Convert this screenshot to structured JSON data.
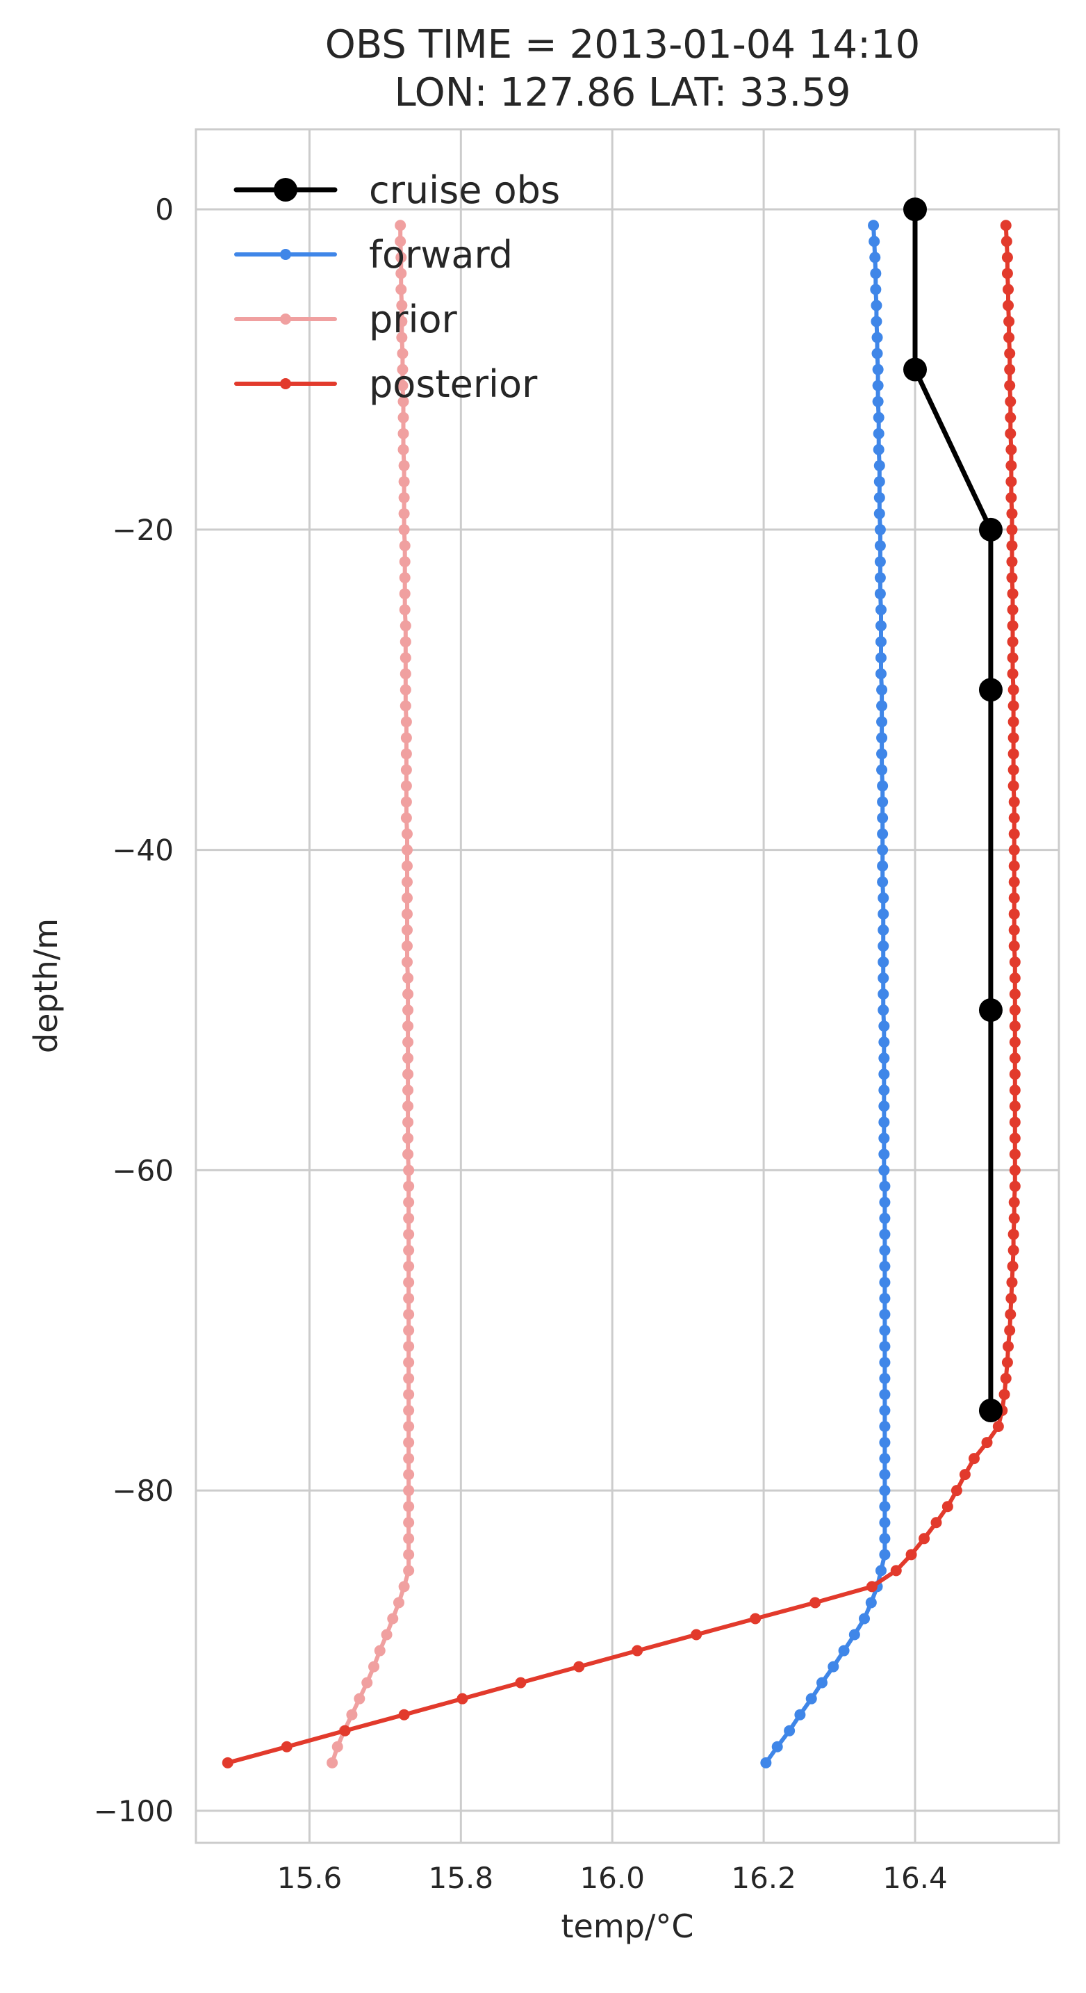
{
  "chart_data": {
    "type": "line",
    "title": "OBS TIME = 2013-01-04 14:10",
    "subtitle": "LON: 127.86 LAT: 33.59",
    "xlabel": "temp/°C",
    "ylabel": "depth/m",
    "xlim": [
      15.45,
      16.59
    ],
    "ylim": [
      -102,
      5
    ],
    "xticks": [
      15.6,
      15.8,
      16.0,
      16.2,
      16.4
    ],
    "xtick_labels": [
      "15.6",
      "15.8",
      "16.0",
      "16.2",
      "16.4"
    ],
    "yticks": [
      0,
      -20,
      -40,
      -60,
      -80,
      -100
    ],
    "ytick_labels": [
      "0",
      "−20",
      "−40",
      "−60",
      "−80",
      "−100"
    ],
    "grid": true,
    "legend_position": "top-left",
    "series": [
      {
        "name": "cruise obs",
        "color": "#000000",
        "marker": "large-circle",
        "points": [
          [
            16.4,
            0
          ],
          [
            16.4,
            -10
          ],
          [
            16.5,
            -20
          ],
          [
            16.5,
            -30
          ],
          [
            16.5,
            -50
          ],
          [
            16.5,
            -75
          ]
        ]
      },
      {
        "name": "forward",
        "color": "#3f86e8",
        "marker": "small-circle",
        "start_depth": -1,
        "end_depth": -97,
        "temps": [
          16.345,
          16.346,
          16.347,
          16.348,
          16.348,
          16.349,
          16.349,
          16.35,
          16.35,
          16.351,
          16.351,
          16.351,
          16.352,
          16.352,
          16.352,
          16.353,
          16.353,
          16.353,
          16.353,
          16.354,
          16.354,
          16.354,
          16.354,
          16.354,
          16.355,
          16.355,
          16.355,
          16.355,
          16.355,
          16.356,
          16.356,
          16.356,
          16.356,
          16.356,
          16.356,
          16.357,
          16.357,
          16.357,
          16.357,
          16.357,
          16.357,
          16.357,
          16.358,
          16.358,
          16.358,
          16.358,
          16.358,
          16.358,
          16.358,
          16.358,
          16.359,
          16.359,
          16.359,
          16.359,
          16.359,
          16.359,
          16.359,
          16.359,
          16.359,
          16.359,
          16.36,
          16.36,
          16.36,
          16.36,
          16.36,
          16.36,
          16.36,
          16.36,
          16.36,
          16.36,
          16.36,
          16.36,
          16.36,
          16.36,
          16.36,
          16.36,
          16.36,
          16.36,
          16.36,
          16.36,
          16.36,
          16.36,
          16.36,
          16.36,
          16.355,
          16.35,
          16.342,
          16.333,
          16.32,
          16.306,
          16.292,
          16.277,
          16.263,
          16.248,
          16.234,
          16.218,
          16.203
        ]
      },
      {
        "name": "prior",
        "color": "#f0a0a0",
        "marker": "small-circle",
        "start_depth": -1,
        "end_depth": -97,
        "temps": [
          15.72,
          15.72,
          15.721,
          15.721,
          15.721,
          15.722,
          15.722,
          15.722,
          15.723,
          15.723,
          15.723,
          15.724,
          15.724,
          15.724,
          15.724,
          15.725,
          15.725,
          15.725,
          15.725,
          15.725,
          15.726,
          15.726,
          15.726,
          15.726,
          15.726,
          15.727,
          15.727,
          15.727,
          15.727,
          15.727,
          15.727,
          15.728,
          15.728,
          15.728,
          15.728,
          15.728,
          15.728,
          15.728,
          15.729,
          15.729,
          15.729,
          15.729,
          15.729,
          15.729,
          15.729,
          15.729,
          15.729,
          15.73,
          15.73,
          15.73,
          15.73,
          15.73,
          15.73,
          15.73,
          15.73,
          15.73,
          15.73,
          15.73,
          15.73,
          15.731,
          15.731,
          15.731,
          15.731,
          15.731,
          15.731,
          15.731,
          15.731,
          15.731,
          15.731,
          15.731,
          15.731,
          15.731,
          15.731,
          15.731,
          15.731,
          15.731,
          15.731,
          15.731,
          15.731,
          15.731,
          15.731,
          15.731,
          15.731,
          15.731,
          15.731,
          15.725,
          15.718,
          15.71,
          15.702,
          15.693,
          15.685,
          15.676,
          15.666,
          15.656,
          15.646,
          15.637,
          15.63
        ]
      },
      {
        "name": "posterior",
        "color": "#e23a2c",
        "marker": "small-circle",
        "start_depth": -1,
        "end_depth": -97,
        "temps": [
          16.52,
          16.521,
          16.522,
          16.522,
          16.523,
          16.523,
          16.524,
          16.524,
          16.525,
          16.525,
          16.525,
          16.526,
          16.526,
          16.526,
          16.527,
          16.527,
          16.527,
          16.527,
          16.528,
          16.528,
          16.528,
          16.528,
          16.528,
          16.529,
          16.529,
          16.529,
          16.529,
          16.529,
          16.529,
          16.53,
          16.53,
          16.53,
          16.53,
          16.53,
          16.53,
          16.53,
          16.531,
          16.531,
          16.531,
          16.531,
          16.531,
          16.531,
          16.531,
          16.531,
          16.531,
          16.531,
          16.532,
          16.532,
          16.532,
          16.532,
          16.532,
          16.532,
          16.532,
          16.532,
          16.532,
          16.532,
          16.532,
          16.532,
          16.532,
          16.532,
          16.532,
          16.531,
          16.531,
          16.53,
          16.53,
          16.529,
          16.528,
          16.527,
          16.526,
          16.525,
          16.523,
          16.522,
          16.52,
          16.518,
          16.515,
          16.51,
          16.495,
          16.478,
          16.466,
          16.455,
          16.443,
          16.428,
          16.412,
          16.395,
          16.375,
          16.343,
          16.268,
          16.189,
          16.111,
          16.033,
          15.956,
          15.879,
          15.802,
          15.725,
          15.647,
          15.57,
          15.492
        ]
      }
    ]
  }
}
